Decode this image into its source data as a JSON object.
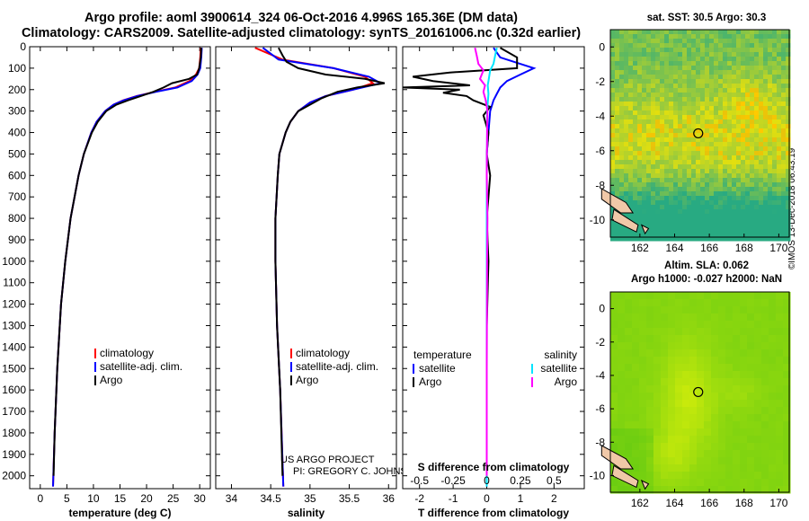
{
  "header": {
    "title_line1": "Argo profile: aoml 3900614_324 06-Oct-2016 4.996S 165.36E (DM data)",
    "title_line2": "Climatology: CARS2009. Satellite-adjusted climatology: synTS_20161006.nc (0.32d earlier)"
  },
  "colors": {
    "climatology": "#ff0000",
    "satellite": "#0000ff",
    "argo": "#000000",
    "satellite_salinity": "#00e5ff",
    "argo_salinity_diff": "#ff00ff"
  },
  "chart_data": [
    {
      "type": "line",
      "name": "temperature",
      "xlabel": "temperature (deg C)",
      "ylabel": "",
      "xlim": [
        -2,
        32
      ],
      "ylim": [
        2060,
        0
      ],
      "xticks": [
        "0",
        "5",
        "10",
        "15",
        "20",
        "25",
        "30"
      ],
      "xtick_values": [
        0,
        5,
        10,
        15,
        20,
        25,
        30
      ],
      "yticks": [
        "0",
        "100",
        "200",
        "300",
        "400",
        "500",
        "600",
        "700",
        "800",
        "900",
        "1000",
        "1100",
        "1200",
        "1300",
        "1400",
        "1500",
        "1600",
        "1700",
        "1800",
        "1900",
        "2000"
      ],
      "ytick_values": [
        0,
        100,
        200,
        300,
        400,
        500,
        600,
        700,
        800,
        900,
        1000,
        1100,
        1200,
        1300,
        1400,
        1500,
        1600,
        1700,
        1800,
        1900,
        2000
      ],
      "legend": [
        {
          "label": "climatology",
          "color": "#ff0000"
        },
        {
          "label": "satellite-adj. clim.",
          "color": "#0000ff"
        },
        {
          "label": "Argo",
          "color": "#000000"
        }
      ],
      "series": [
        {
          "name": "climatology",
          "color": "#ff0000",
          "depth": [
            5,
            50,
            100,
            130,
            160,
            190,
            210,
            230,
            250,
            270,
            300,
            350,
            400,
            500,
            600,
            800,
            1000,
            1200,
            1500,
            1800,
            2050
          ],
          "values": [
            30.2,
            30.1,
            29.9,
            29.3,
            28.1,
            25.4,
            21.6,
            18.2,
            15.6,
            13.8,
            12.2,
            10.6,
            9.6,
            8.2,
            7.2,
            5.7,
            4.7,
            3.9,
            3.2,
            2.7,
            2.4
          ]
        },
        {
          "name": "satellite-adj. clim.",
          "color": "#0000ff",
          "depth": [
            5,
            50,
            100,
            130,
            160,
            190,
            210,
            230,
            250,
            270,
            300,
            350,
            400,
            500,
            600,
            800,
            1000,
            1200,
            1500,
            1800,
            2050
          ],
          "values": [
            30.4,
            30.3,
            30.1,
            29.6,
            28.5,
            25.8,
            21.8,
            18.3,
            15.7,
            13.8,
            12.2,
            10.6,
            9.6,
            8.2,
            7.2,
            5.7,
            4.7,
            3.9,
            3.2,
            2.7,
            2.4
          ]
        },
        {
          "name": "Argo",
          "color": "#000000",
          "depth": [
            5,
            50,
            100,
            130,
            150,
            170,
            190,
            210,
            230,
            250,
            270,
            300,
            350,
            400,
            500,
            600,
            800,
            1000,
            1200,
            1500,
            1800,
            2000
          ],
          "values": [
            30.3,
            30.2,
            29.9,
            29.5,
            28.0,
            24.8,
            23.2,
            21.3,
            18.9,
            16.5,
            14.3,
            12.4,
            10.8,
            9.7,
            8.2,
            7.2,
            5.7,
            4.7,
            3.9,
            3.2,
            2.7,
            2.5
          ]
        }
      ]
    },
    {
      "type": "line",
      "name": "salinity",
      "xlabel": "salinity",
      "xlim": [
        33.8,
        36.1
      ],
      "ylim": [
        2060,
        0
      ],
      "xticks": [
        "34",
        "34.5",
        "35",
        "35.5",
        "36"
      ],
      "xtick_values": [
        34,
        34.5,
        35,
        35.5,
        36
      ],
      "legend": [
        {
          "label": "climatology",
          "color": "#ff0000"
        },
        {
          "label": "satellite-adj. clim.",
          "color": "#0000ff"
        },
        {
          "label": "Argo",
          "color": "#000000"
        }
      ],
      "annotation": [
        "US ARGO PROJECT",
        "PI: GREGORY C. JOHNSON"
      ],
      "series": [
        {
          "name": "climatology",
          "color": "#ff0000",
          "depth": [
            5,
            60,
            100,
            140,
            170,
            200,
            230,
            260,
            300,
            350,
            400,
            500,
            600,
            800,
            1000,
            1300,
            1600,
            2050
          ],
          "values": [
            34.3,
            34.65,
            35.3,
            35.7,
            35.8,
            35.55,
            35.2,
            35.0,
            34.85,
            34.75,
            34.69,
            34.61,
            34.59,
            34.56,
            34.56,
            34.58,
            34.62,
            34.66
          ]
        },
        {
          "name": "satellite-adj. clim.",
          "color": "#0000ff",
          "depth": [
            5,
            60,
            100,
            140,
            170,
            200,
            230,
            260,
            300,
            350,
            400,
            500,
            600,
            800,
            1000,
            1300,
            1600,
            2050
          ],
          "values": [
            34.4,
            34.6,
            35.3,
            35.75,
            35.9,
            35.55,
            35.2,
            35.0,
            34.85,
            34.75,
            34.69,
            34.61,
            34.59,
            34.56,
            34.56,
            34.58,
            34.62,
            34.66
          ]
        },
        {
          "name": "Argo",
          "color": "#000000",
          "depth": [
            5,
            40,
            70,
            100,
            130,
            150,
            170,
            190,
            210,
            240,
            270,
            300,
            350,
            400,
            500,
            600,
            800,
            1000,
            1300,
            1600,
            2000
          ],
          "values": [
            34.6,
            34.65,
            34.7,
            34.85,
            35.2,
            35.7,
            35.95,
            35.6,
            35.35,
            35.15,
            35.0,
            34.85,
            34.75,
            34.69,
            34.61,
            34.59,
            34.56,
            34.56,
            34.58,
            34.62,
            34.65
          ]
        }
      ]
    },
    {
      "type": "line",
      "name": "difference",
      "xlabel": "T difference from climatology",
      "xlabel_top": "S difference from climatology",
      "xlim": [
        -2.5,
        2.9
      ],
      "ylim": [
        2060,
        0
      ],
      "xticks": [
        "-2",
        "-1",
        "0",
        "1",
        "2"
      ],
      "xtick_values": [
        -2,
        -1,
        0,
        1,
        2
      ],
      "sticks": [
        "-0.5",
        "-0.25",
        "0",
        "0.25",
        "0.5"
      ],
      "stick_values": [
        -0.5,
        -0.25,
        0,
        0.25,
        0.5
      ],
      "legend_left_title": "temperature",
      "legend_right_title": "salinity",
      "legend_left": [
        {
          "label": "satellite",
          "color": "#0000ff"
        },
        {
          "label": "Argo",
          "color": "#000000"
        }
      ],
      "legend_right": [
        {
          "label": "satellite",
          "color": "#00e5ff"
        },
        {
          "label": "Argo",
          "color": "#ff00ff"
        }
      ],
      "series": [
        {
          "name": "T satellite",
          "color": "#0000ff",
          "depth": [
            5,
            50,
            100,
            130,
            160,
            190,
            220,
            250,
            300,
            400,
            500,
            700,
            900,
            1200,
            1500,
            1800,
            2050
          ],
          "values": [
            0.2,
            0.4,
            1.4,
            1.0,
            0.6,
            0.4,
            0.3,
            0.2,
            0.1,
            0.05,
            0,
            0,
            0,
            0,
            0,
            0,
            0
          ]
        },
        {
          "name": "T Argo",
          "color": "#000000",
          "depth": [
            5,
            50,
            100,
            120,
            140,
            160,
            180,
            190,
            200,
            215,
            230,
            250,
            280,
            320,
            400,
            500,
            600,
            800,
            1000,
            1300,
            1600,
            2000
          ],
          "values": [
            0.4,
            0.9,
            0.9,
            -1.1,
            -2.2,
            -1.6,
            -0.5,
            -2.5,
            -0.8,
            -1.3,
            -0.6,
            -0.4,
            0.1,
            -0.1,
            0.05,
            0,
            0.1,
            0,
            0.05,
            0,
            0,
            0
          ]
        },
        {
          "name": "S satellite",
          "color": "#00e5ff",
          "depth": [
            5,
            40,
            80,
            110,
            150,
            180,
            220,
            300,
            400,
            600,
            1000,
            1500,
            2050
          ],
          "values": [
            0.3,
            0.25,
            0.2,
            0.1,
            0.06,
            0.03,
            0.05,
            0.01,
            0.01,
            0,
            0,
            0,
            0
          ]
        },
        {
          "name": "S Argo",
          "color": "#ff00ff",
          "depth": [
            5,
            40,
            80,
            110,
            150,
            180,
            210,
            250,
            300,
            400,
            600,
            800,
            1000,
            1500,
            2000
          ],
          "values": [
            -0.35,
            -0.3,
            -0.25,
            -0.1,
            -0.2,
            -0.05,
            -0.1,
            -0.03,
            0.02,
            0.01,
            0,
            0.02,
            0.01,
            0,
            0
          ]
        }
      ]
    },
    {
      "type": "heatmap",
      "name": "sat_sst",
      "title": "sat. SST: 30.5 Argo: 30.3",
      "xlim": [
        160.3,
        170.6
      ],
      "ylim": [
        -11,
        1
      ],
      "xticks": [
        "162",
        "164",
        "166",
        "168",
        "170"
      ],
      "xtick_values": [
        162,
        164,
        166,
        168,
        170
      ],
      "yticks": [
        "0",
        "-2",
        "-4",
        "-6",
        "-8",
        "-10"
      ],
      "ytick_values": [
        0,
        -2,
        -4,
        -6,
        -8,
        -10
      ],
      "marker": {
        "lon": 165.36,
        "lat": -4.996
      }
    },
    {
      "type": "heatmap",
      "name": "altim_sla",
      "title_line1": "Altim. SLA: 0.062",
      "title_line2": "Argo h1000: -0.027 h2000: NaN",
      "xlim": [
        160.3,
        170.6
      ],
      "ylim": [
        -11,
        1
      ],
      "xticks": [
        "162",
        "164",
        "166",
        "168",
        "170"
      ],
      "xtick_values": [
        162,
        164,
        166,
        168,
        170
      ],
      "yticks": [
        "0",
        "-2",
        "-4",
        "-6",
        "-8",
        "-10"
      ],
      "ytick_values": [
        0,
        -2,
        -4,
        -6,
        -8,
        -10
      ],
      "marker": {
        "lon": 165.36,
        "lat": -4.996
      }
    }
  ],
  "footer": {
    "credit": "©IMOS 13-Dec-2018 06:43:19"
  }
}
